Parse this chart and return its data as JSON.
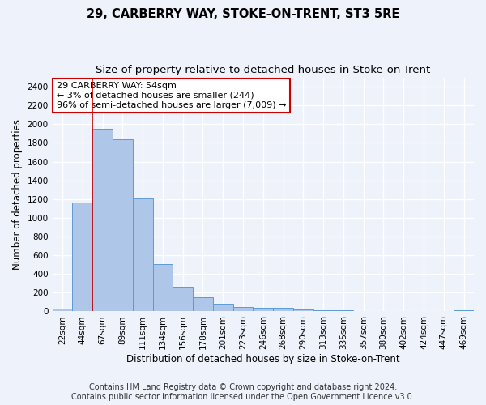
{
  "title": "29, CARBERRY WAY, STOKE-ON-TRENT, ST3 5RE",
  "subtitle": "Size of property relative to detached houses in Stoke-on-Trent",
  "xlabel": "Distribution of detached houses by size in Stoke-on-Trent",
  "ylabel": "Number of detached properties",
  "categories": [
    "22sqm",
    "44sqm",
    "67sqm",
    "89sqm",
    "111sqm",
    "134sqm",
    "156sqm",
    "178sqm",
    "201sqm",
    "223sqm",
    "246sqm",
    "268sqm",
    "290sqm",
    "313sqm",
    "335sqm",
    "357sqm",
    "380sqm",
    "402sqm",
    "424sqm",
    "447sqm",
    "469sqm"
  ],
  "values": [
    30,
    1160,
    1950,
    1840,
    1210,
    510,
    265,
    155,
    80,
    45,
    35,
    35,
    20,
    15,
    10,
    8,
    5,
    5,
    4,
    3,
    15
  ],
  "bar_color": "#aec6e8",
  "bar_edge_color": "#5b9bd5",
  "property_line_color": "#cc0000",
  "annotation_text": "29 CARBERRY WAY: 54sqm\n← 3% of detached houses are smaller (244)\n96% of semi-detached houses are larger (7,009) →",
  "annotation_box_color": "#ffffff",
  "annotation_box_edge": "#cc0000",
  "ylim": [
    0,
    2500
  ],
  "yticks": [
    0,
    200,
    400,
    600,
    800,
    1000,
    1200,
    1400,
    1600,
    1800,
    2000,
    2200,
    2400
  ],
  "footer_line1": "Contains HM Land Registry data © Crown copyright and database right 2024.",
  "footer_line2": "Contains public sector information licensed under the Open Government Licence v3.0.",
  "bg_color": "#eef2fa",
  "plot_bg_color": "#eef2fa",
  "grid_color": "#ffffff",
  "title_fontsize": 10.5,
  "subtitle_fontsize": 9.5,
  "axis_label_fontsize": 8.5,
  "tick_fontsize": 7.5,
  "annotation_fontsize": 8,
  "footer_fontsize": 7
}
